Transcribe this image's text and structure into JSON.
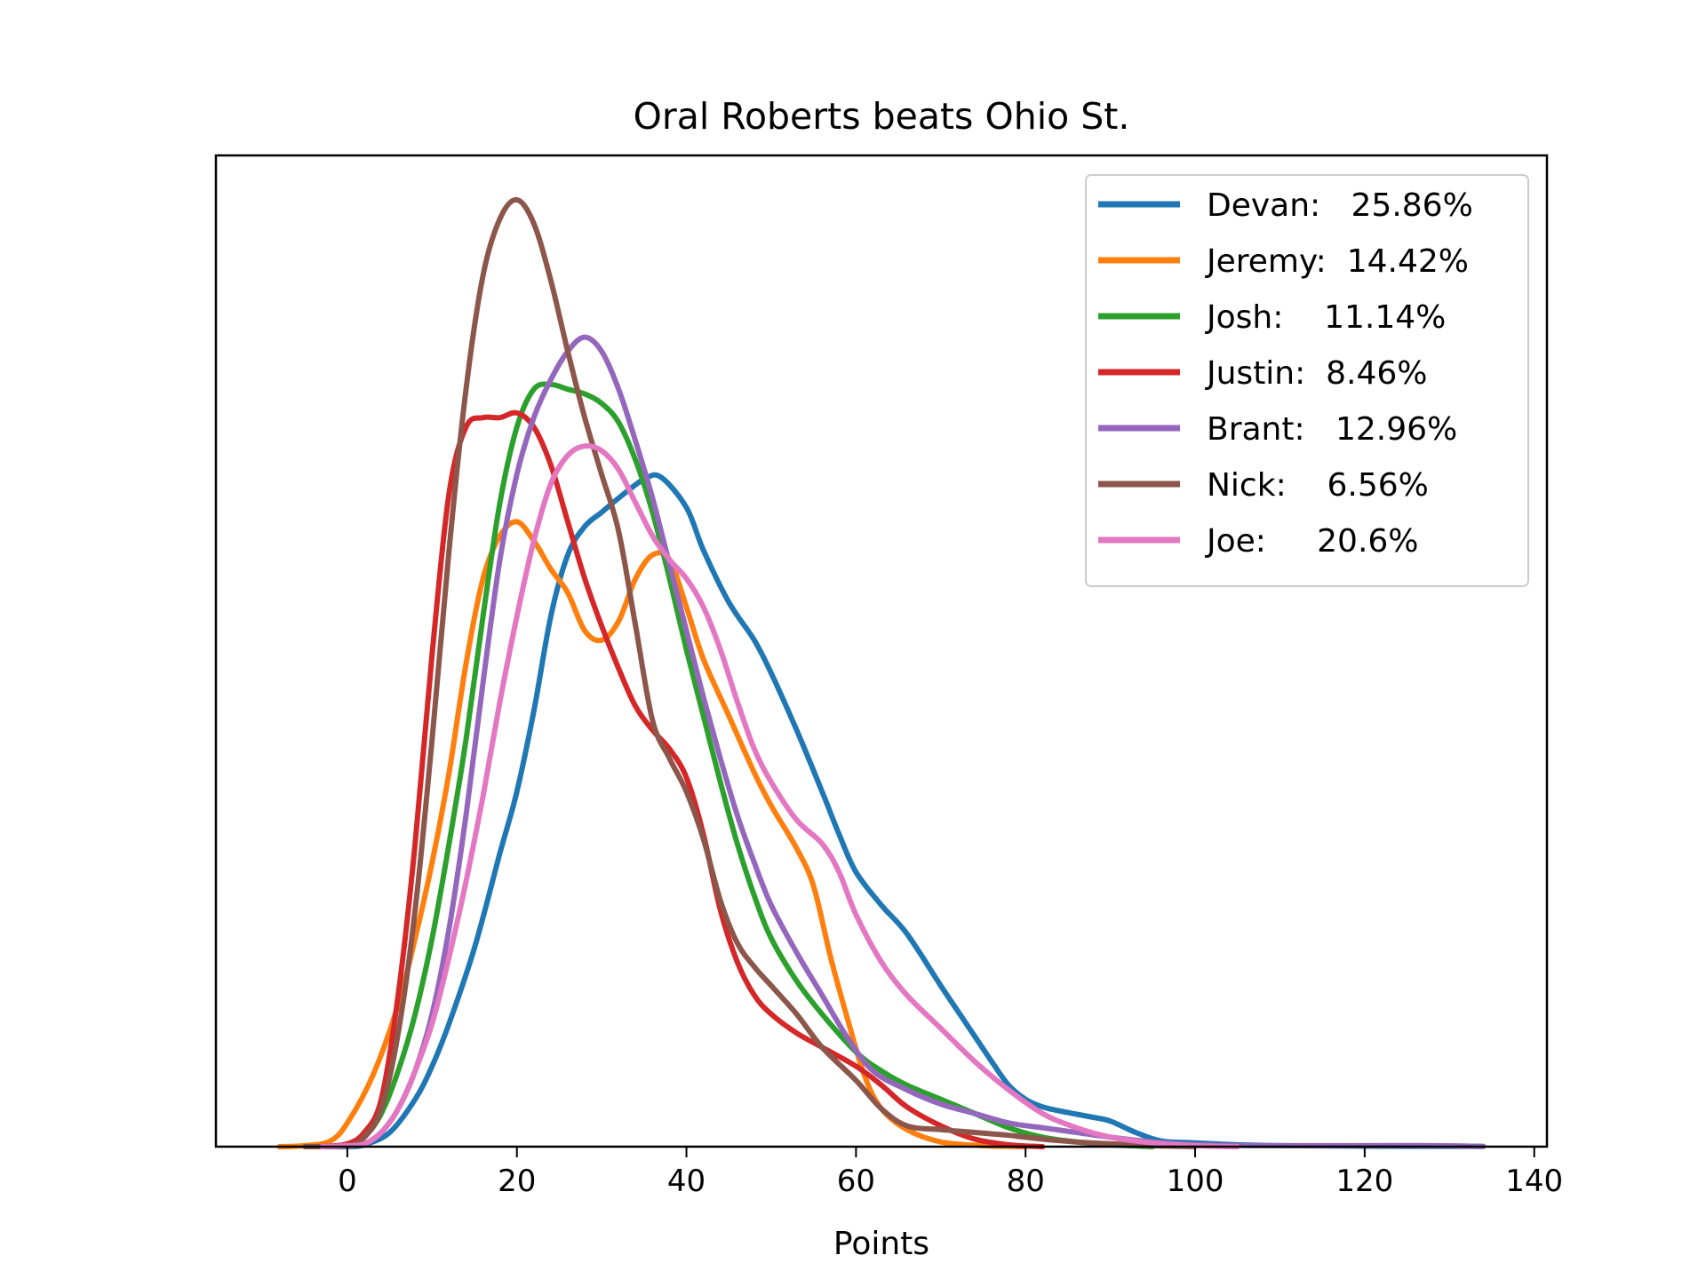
{
  "chart_data": {
    "type": "line",
    "title": "Oral Roberts beats Ohio St.",
    "xlabel": "Points",
    "ylabel": "",
    "xlim": [
      -15.5,
      141.5
    ],
    "ylim": [
      0,
      1.0
    ],
    "xticks": [
      0,
      20,
      40,
      60,
      80,
      100,
      120,
      140
    ],
    "yticks": [],
    "grid": false,
    "legend_position": "upper right",
    "series": [
      {
        "name": "Devan:   25.86%",
        "color": "#1f77b4",
        "points": [
          [
            -5,
            0
          ],
          [
            0,
            0.0
          ],
          [
            2,
            0.002
          ],
          [
            5,
            0.015
          ],
          [
            8,
            0.05
          ],
          [
            10,
            0.085
          ],
          [
            12,
            0.13
          ],
          [
            15,
            0.21
          ],
          [
            18,
            0.31
          ],
          [
            20,
            0.375
          ],
          [
            22,
            0.46
          ],
          [
            24,
            0.56
          ],
          [
            26,
            0.625
          ],
          [
            28,
            0.655
          ],
          [
            30,
            0.67
          ],
          [
            32,
            0.685
          ],
          [
            35,
            0.705
          ],
          [
            37,
            0.707
          ],
          [
            40,
            0.675
          ],
          [
            42,
            0.63
          ],
          [
            45,
            0.575
          ],
          [
            48,
            0.535
          ],
          [
            50,
            0.5
          ],
          [
            53,
            0.44
          ],
          [
            56,
            0.375
          ],
          [
            58,
            0.33
          ],
          [
            60,
            0.29
          ],
          [
            63,
            0.255
          ],
          [
            66,
            0.225
          ],
          [
            70,
            0.17
          ],
          [
            73,
            0.13
          ],
          [
            76,
            0.09
          ],
          [
            78,
            0.065
          ],
          [
            80,
            0.05
          ],
          [
            82,
            0.042
          ],
          [
            85,
            0.036
          ],
          [
            88,
            0.031
          ],
          [
            90,
            0.027
          ],
          [
            93,
            0.015
          ],
          [
            96,
            0.006
          ],
          [
            100,
            0.004
          ],
          [
            105,
            0.002
          ],
          [
            110,
            0.001
          ],
          [
            120,
            0.0005
          ],
          [
            134,
            0.0003
          ]
        ]
      },
      {
        "name": "Jeremy:  14.42%",
        "color": "#ff7f0e",
        "points": [
          [
            -8,
            0
          ],
          [
            -5,
            0.001
          ],
          [
            -2,
            0.006
          ],
          [
            0,
            0.025
          ],
          [
            3,
            0.075
          ],
          [
            6,
            0.15
          ],
          [
            8,
            0.22
          ],
          [
            10,
            0.3
          ],
          [
            12,
            0.395
          ],
          [
            14,
            0.51
          ],
          [
            16,
            0.6
          ],
          [
            18,
            0.645
          ],
          [
            20,
            0.66
          ],
          [
            22,
            0.64
          ],
          [
            24,
            0.61
          ],
          [
            26,
            0.585
          ],
          [
            28,
            0.545
          ],
          [
            30,
            0.535
          ],
          [
            32,
            0.555
          ],
          [
            34,
            0.6
          ],
          [
            36,
            0.625
          ],
          [
            38,
            0.62
          ],
          [
            40,
            0.57
          ],
          [
            42,
            0.515
          ],
          [
            45,
            0.455
          ],
          [
            48,
            0.395
          ],
          [
            50,
            0.36
          ],
          [
            53,
            0.315
          ],
          [
            55,
            0.275
          ],
          [
            57,
            0.2
          ],
          [
            59,
            0.135
          ],
          [
            61,
            0.075
          ],
          [
            63,
            0.04
          ],
          [
            66,
            0.018
          ],
          [
            70,
            0.005
          ],
          [
            75,
            0.001
          ],
          [
            80,
            0
          ]
        ]
      },
      {
        "name": "Josh:    11.14%",
        "color": "#2ca02c",
        "points": [
          [
            -3,
            0
          ],
          [
            0,
            0.002
          ],
          [
            2,
            0.01
          ],
          [
            4,
            0.035
          ],
          [
            6,
            0.08
          ],
          [
            8,
            0.14
          ],
          [
            10,
            0.22
          ],
          [
            12,
            0.32
          ],
          [
            14,
            0.43
          ],
          [
            16,
            0.56
          ],
          [
            18,
            0.68
          ],
          [
            20,
            0.76
          ],
          [
            22,
            0.8
          ],
          [
            24,
            0.805
          ],
          [
            26,
            0.8
          ],
          [
            28,
            0.795
          ],
          [
            30,
            0.785
          ],
          [
            32,
            0.765
          ],
          [
            34,
            0.725
          ],
          [
            36,
            0.67
          ],
          [
            38,
            0.6
          ],
          [
            40,
            0.525
          ],
          [
            42,
            0.455
          ],
          [
            44,
            0.385
          ],
          [
            46,
            0.32
          ],
          [
            48,
            0.265
          ],
          [
            50,
            0.22
          ],
          [
            53,
            0.175
          ],
          [
            56,
            0.14
          ],
          [
            60,
            0.1
          ],
          [
            63,
            0.08
          ],
          [
            66,
            0.065
          ],
          [
            70,
            0.05
          ],
          [
            74,
            0.035
          ],
          [
            78,
            0.02
          ],
          [
            82,
            0.01
          ],
          [
            86,
            0.005
          ],
          [
            90,
            0.002
          ],
          [
            95,
            0
          ]
        ]
      },
      {
        "name": "Justin:  8.46%",
        "color": "#d62728",
        "points": [
          [
            -3,
            0
          ],
          [
            0,
            0.003
          ],
          [
            2,
            0.015
          ],
          [
            4,
            0.05
          ],
          [
            6,
            0.16
          ],
          [
            8,
            0.32
          ],
          [
            10,
            0.52
          ],
          [
            12,
            0.69
          ],
          [
            14,
            0.76
          ],
          [
            16,
            0.77
          ],
          [
            18,
            0.77
          ],
          [
            20,
            0.775
          ],
          [
            22,
            0.76
          ],
          [
            24,
            0.72
          ],
          [
            26,
            0.66
          ],
          [
            28,
            0.6
          ],
          [
            30,
            0.55
          ],
          [
            32,
            0.505
          ],
          [
            34,
            0.465
          ],
          [
            36,
            0.44
          ],
          [
            38,
            0.42
          ],
          [
            40,
            0.39
          ],
          [
            42,
            0.33
          ],
          [
            44,
            0.25
          ],
          [
            46,
            0.195
          ],
          [
            48,
            0.16
          ],
          [
            50,
            0.14
          ],
          [
            53,
            0.12
          ],
          [
            56,
            0.105
          ],
          [
            60,
            0.085
          ],
          [
            63,
            0.065
          ],
          [
            66,
            0.042
          ],
          [
            70,
            0.022
          ],
          [
            74,
            0.008
          ],
          [
            78,
            0.002
          ],
          [
            82,
            0
          ]
        ]
      },
      {
        "name": "Brant:   12.96%",
        "color": "#9467bd",
        "points": [
          [
            -3,
            0
          ],
          [
            0,
            0.001
          ],
          [
            2,
            0.003
          ],
          [
            4,
            0.015
          ],
          [
            6,
            0.04
          ],
          [
            8,
            0.08
          ],
          [
            10,
            0.14
          ],
          [
            12,
            0.23
          ],
          [
            14,
            0.35
          ],
          [
            16,
            0.49
          ],
          [
            18,
            0.62
          ],
          [
            20,
            0.71
          ],
          [
            22,
            0.77
          ],
          [
            24,
            0.81
          ],
          [
            26,
            0.84
          ],
          [
            28,
            0.855
          ],
          [
            30,
            0.84
          ],
          [
            32,
            0.8
          ],
          [
            34,
            0.745
          ],
          [
            36,
            0.685
          ],
          [
            38,
            0.615
          ],
          [
            40,
            0.545
          ],
          [
            42,
            0.475
          ],
          [
            44,
            0.41
          ],
          [
            46,
            0.35
          ],
          [
            48,
            0.3
          ],
          [
            50,
            0.255
          ],
          [
            53,
            0.205
          ],
          [
            56,
            0.16
          ],
          [
            59,
            0.115
          ],
          [
            62,
            0.08
          ],
          [
            66,
            0.06
          ],
          [
            70,
            0.045
          ],
          [
            74,
            0.035
          ],
          [
            78,
            0.025
          ],
          [
            82,
            0.02
          ],
          [
            86,
            0.015
          ],
          [
            90,
            0.01
          ],
          [
            95,
            0.005
          ],
          [
            100,
            0.002
          ],
          [
            110,
            0.001
          ],
          [
            126,
            0.0012
          ],
          [
            134,
            0.0003
          ]
        ]
      },
      {
        "name": "Nick:    6.56%",
        "color": "#8c564b",
        "points": [
          [
            -5,
            0
          ],
          [
            0,
            0.001
          ],
          [
            2,
            0.01
          ],
          [
            4,
            0.04
          ],
          [
            6,
            0.12
          ],
          [
            8,
            0.25
          ],
          [
            10,
            0.43
          ],
          [
            12,
            0.63
          ],
          [
            14,
            0.8
          ],
          [
            16,
            0.92
          ],
          [
            18,
            0.98
          ],
          [
            20,
            1.0
          ],
          [
            22,
            0.975
          ],
          [
            24,
            0.915
          ],
          [
            26,
            0.84
          ],
          [
            28,
            0.77
          ],
          [
            30,
            0.71
          ],
          [
            32,
            0.65
          ],
          [
            34,
            0.55
          ],
          [
            36,
            0.45
          ],
          [
            38,
            0.41
          ],
          [
            40,
            0.375
          ],
          [
            42,
            0.325
          ],
          [
            44,
            0.26
          ],
          [
            46,
            0.215
          ],
          [
            48,
            0.19
          ],
          [
            50,
            0.17
          ],
          [
            53,
            0.14
          ],
          [
            56,
            0.105
          ],
          [
            60,
            0.07
          ],
          [
            63,
            0.04
          ],
          [
            66,
            0.022
          ],
          [
            70,
            0.018
          ],
          [
            74,
            0.015
          ],
          [
            78,
            0.012
          ],
          [
            82,
            0.008
          ],
          [
            86,
            0.005
          ],
          [
            90,
            0.003
          ],
          [
            95,
            0.001
          ],
          [
            100,
            0
          ]
        ]
      },
      {
        "name": "Joe:     20.6%",
        "color": "#e377c2",
        "points": [
          [
            -3,
            0
          ],
          [
            0,
            0.001
          ],
          [
            2,
            0.003
          ],
          [
            4,
            0.015
          ],
          [
            6,
            0.04
          ],
          [
            8,
            0.08
          ],
          [
            10,
            0.13
          ],
          [
            12,
            0.2
          ],
          [
            14,
            0.28
          ],
          [
            16,
            0.37
          ],
          [
            18,
            0.47
          ],
          [
            20,
            0.56
          ],
          [
            22,
            0.64
          ],
          [
            24,
            0.7
          ],
          [
            26,
            0.73
          ],
          [
            28,
            0.74
          ],
          [
            30,
            0.735
          ],
          [
            32,
            0.715
          ],
          [
            34,
            0.68
          ],
          [
            36,
            0.645
          ],
          [
            38,
            0.62
          ],
          [
            40,
            0.6
          ],
          [
            42,
            0.57
          ],
          [
            44,
            0.525
          ],
          [
            46,
            0.47
          ],
          [
            48,
            0.42
          ],
          [
            50,
            0.385
          ],
          [
            53,
            0.345
          ],
          [
            56,
            0.32
          ],
          [
            58,
            0.29
          ],
          [
            60,
            0.245
          ],
          [
            63,
            0.195
          ],
          [
            66,
            0.16
          ],
          [
            70,
            0.125
          ],
          [
            74,
            0.09
          ],
          [
            78,
            0.06
          ],
          [
            82,
            0.035
          ],
          [
            86,
            0.02
          ],
          [
            90,
            0.01
          ],
          [
            95,
            0.004
          ],
          [
            100,
            0.001
          ],
          [
            105,
            0
          ]
        ]
      }
    ]
  }
}
